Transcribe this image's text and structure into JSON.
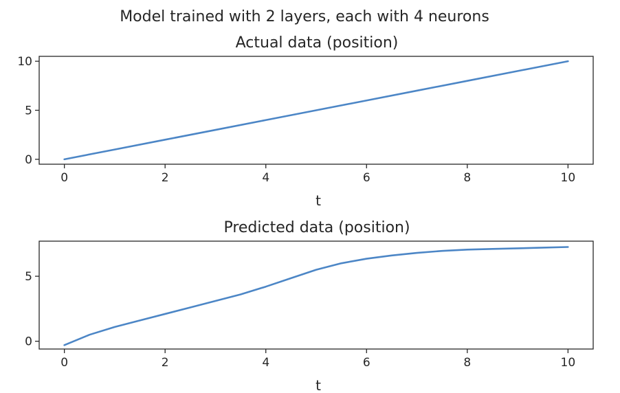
{
  "figure": {
    "suptitle": "Model trained with 2 layers, each with 4 neurons"
  },
  "chart_data": [
    {
      "type": "line",
      "title": "Actual data (position)",
      "xlabel": "t",
      "ylabel": "",
      "xlim": [
        -0.5,
        10.5
      ],
      "ylim": [
        -0.5,
        10.5
      ],
      "xticks": [
        0,
        2,
        4,
        6,
        8,
        10
      ],
      "yticks": [
        0,
        5,
        10
      ],
      "grid": false,
      "series": [
        {
          "color": "#4c86c6",
          "x": [
            0,
            1,
            2,
            3,
            4,
            5,
            6,
            7,
            8,
            9,
            10
          ],
          "y": [
            0,
            1,
            2,
            3,
            4,
            5,
            6,
            7,
            8,
            9,
            10
          ]
        }
      ]
    },
    {
      "type": "line",
      "title": "Predicted data (position)",
      "xlabel": "t",
      "ylabel": "",
      "xlim": [
        -0.5,
        10.5
      ],
      "ylim": [
        -0.6,
        7.7
      ],
      "xticks": [
        0,
        2,
        4,
        6,
        8,
        10
      ],
      "yticks": [
        0,
        5
      ],
      "grid": false,
      "series": [
        {
          "color": "#4c86c6",
          "x": [
            0,
            0.5,
            1,
            1.5,
            2,
            2.5,
            3,
            3.5,
            4,
            4.5,
            5,
            5.5,
            6,
            6.5,
            7,
            7.5,
            8,
            8.5,
            9,
            9.5,
            10
          ],
          "y": [
            -0.3,
            0.5,
            1.1,
            1.6,
            2.1,
            2.6,
            3.1,
            3.6,
            4.2,
            4.85,
            5.5,
            6.0,
            6.35,
            6.6,
            6.8,
            6.95,
            7.05,
            7.1,
            7.15,
            7.2,
            7.25
          ]
        }
      ]
    }
  ]
}
